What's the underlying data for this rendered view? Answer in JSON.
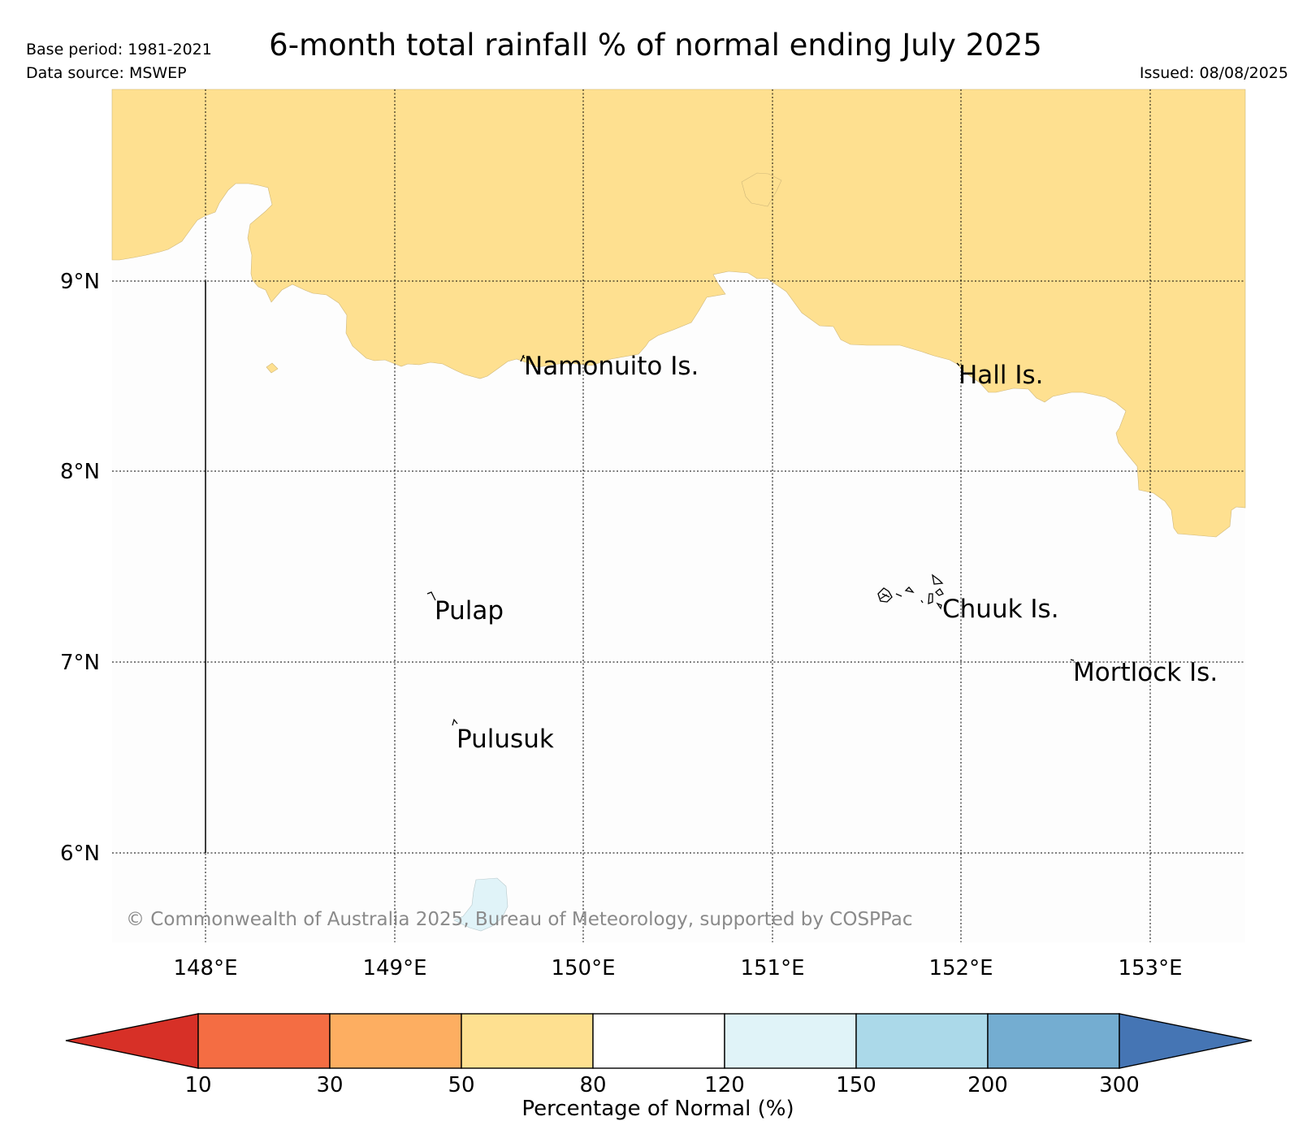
{
  "header": {
    "title": "6-month total rainfall % of normal ending July 2025",
    "base_period": "Base period: 1981-2021",
    "data_source": "Data source: MSWEP",
    "issued": "Issued: 08/08/2025"
  },
  "map": {
    "lat_labels": [
      "9°N",
      "8°N",
      "7°N",
      "6°N"
    ],
    "lon_labels": [
      "148°E",
      "149°E",
      "150°E",
      "151°E",
      "152°E",
      "153°E"
    ],
    "places": [
      {
        "name": "Namonuito Is."
      },
      {
        "name": "Hall Is."
      },
      {
        "name": "Pulap"
      },
      {
        "name": "Chuuk Is."
      },
      {
        "name": "Mortlock Is."
      },
      {
        "name": "Pulusuk"
      }
    ],
    "copyright": "© Commonwealth of Australia 2025, Bureau of Meteorology, supported by COSPPac",
    "fill_colors": {
      "50-80": "#fee090",
      "120-150": "#e0f3f8"
    }
  },
  "colorbar": {
    "title": "Percentage of Normal (%)",
    "ticks": [
      "10",
      "30",
      "50",
      "80",
      "120",
      "150",
      "200",
      "300"
    ],
    "colors": [
      "#d73027",
      "#f46d43",
      "#fdae61",
      "#fee090",
      "#ffffff",
      "#e0f3f8",
      "#abd9e9",
      "#74add1",
      "#4575b4"
    ]
  }
}
